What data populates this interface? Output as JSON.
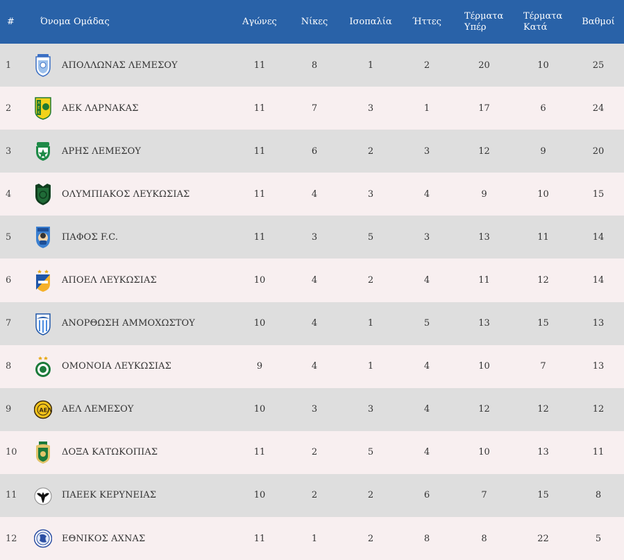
{
  "header": {
    "pos": "#",
    "team": "Όνομα Ομάδας",
    "played": "Αγώνες",
    "wins": "Νίκες",
    "draws": "Ισοπαλία",
    "losses": "Ήττες",
    "gf": "Τέρματα Υπέρ",
    "ga": "Τέρματα Κατά",
    "points": "Βαθμοί"
  },
  "rows": [
    {
      "pos": "1",
      "team": "ΑΠΟΛΛΩΝΑΣ ΛΕΜΕΣΟΥ",
      "logo": "apollon-crest-icon",
      "played": "11",
      "wins": "8",
      "draws": "1",
      "losses": "2",
      "gf": "20",
      "ga": "10",
      "points": "25"
    },
    {
      "pos": "2",
      "team": "ΑΕΚ ΛΑΡΝΑΚΑΣ",
      "logo": "aek-crest-icon",
      "played": "11",
      "wins": "7",
      "draws": "3",
      "losses": "1",
      "gf": "17",
      "ga": "6",
      "points": "24"
    },
    {
      "pos": "3",
      "team": "ΑΡΗΣ ΛΕΜΕΣΟΥ",
      "logo": "aris-crest-icon",
      "played": "11",
      "wins": "6",
      "draws": "2",
      "losses": "3",
      "gf": "12",
      "ga": "9",
      "points": "20"
    },
    {
      "pos": "4",
      "team": "ΟΛΥΜΠΙΑΚΟΣ ΛΕΥΚΩΣΙΑΣ",
      "logo": "olympiakos-crest-icon",
      "played": "11",
      "wins": "4",
      "draws": "3",
      "losses": "4",
      "gf": "9",
      "ga": "10",
      "points": "15"
    },
    {
      "pos": "5",
      "team": "ΠΑΦΟΣ F.C.",
      "logo": "pafos-crest-icon",
      "played": "11",
      "wins": "3",
      "draws": "5",
      "losses": "3",
      "gf": "13",
      "ga": "11",
      "points": "14"
    },
    {
      "pos": "6",
      "team": "ΑΠΟΕΛ ΛΕΥΚΩΣΙΑΣ",
      "logo": "apoel-crest-icon",
      "played": "10",
      "wins": "4",
      "draws": "2",
      "losses": "4",
      "gf": "11",
      "ga": "12",
      "points": "14"
    },
    {
      "pos": "7",
      "team": "ΑΝΟΡΘΩΣΗ ΑΜΜΟΧΩΣΤΟΥ",
      "logo": "anorthosis-crest-icon",
      "played": "10",
      "wins": "4",
      "draws": "1",
      "losses": "5",
      "gf": "13",
      "ga": "15",
      "points": "13"
    },
    {
      "pos": "8",
      "team": "ΟΜΟΝΟΙΑ ΛΕΥΚΩΣΙΑΣ",
      "logo": "omonoia-crest-icon",
      "played": "9",
      "wins": "4",
      "draws": "1",
      "losses": "4",
      "gf": "10",
      "ga": "7",
      "points": "13"
    },
    {
      "pos": "9",
      "team": "ΑΕΛ ΛΕΜΕΣΟΥ",
      "logo": "ael-crest-icon",
      "played": "10",
      "wins": "3",
      "draws": "3",
      "losses": "4",
      "gf": "12",
      "ga": "12",
      "points": "12"
    },
    {
      "pos": "10",
      "team": "ΔΟΞΑ ΚΑΤΩΚΟΠΙΑΣ",
      "logo": "doxa-crest-icon",
      "played": "11",
      "wins": "2",
      "draws": "5",
      "losses": "4",
      "gf": "10",
      "ga": "13",
      "points": "11"
    },
    {
      "pos": "11",
      "team": "ΠΑΕΕΚ ΚΕΡΥΝΕΙΑΣ",
      "logo": "paeek-crest-icon",
      "played": "10",
      "wins": "2",
      "draws": "2",
      "losses": "6",
      "gf": "7",
      "ga": "15",
      "points": "8"
    },
    {
      "pos": "12",
      "team": "ΕΘΝΙΚΟΣ ΑΧΝΑΣ",
      "logo": "ethnikos-crest-icon",
      "played": "11",
      "wins": "1",
      "draws": "2",
      "losses": "8",
      "gf": "8",
      "ga": "22",
      "points": "5"
    }
  ],
  "colors": {
    "header_bg": "#2962a8",
    "row_odd": "#dedede",
    "row_even": "#f8eff0"
  }
}
